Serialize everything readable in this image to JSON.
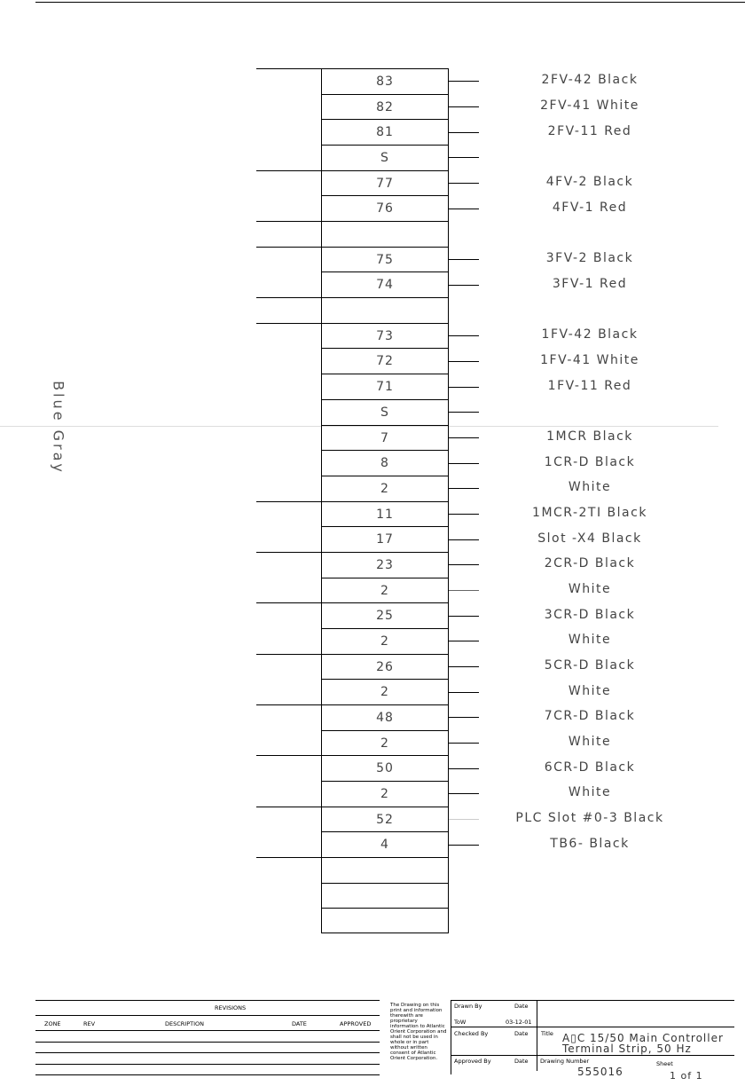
{
  "side_label": "Blue Gray",
  "terminals": [
    {
      "number": "83",
      "wire": "2FV-42 Black"
    },
    {
      "number": "82",
      "wire": "2FV-41 White"
    },
    {
      "number": "81",
      "wire": "2FV-11 Red"
    },
    {
      "number": "S",
      "wire": ""
    },
    {
      "number": "77",
      "wire": "4FV-2 Black"
    },
    {
      "number": "76",
      "wire": "4FV-1 Red"
    },
    {
      "number": "",
      "wire": ""
    },
    {
      "number": "75",
      "wire": "3FV-2 Black"
    },
    {
      "number": "74",
      "wire": "3FV-1 Red"
    },
    {
      "number": "",
      "wire": ""
    },
    {
      "number": "73",
      "wire": "1FV-42 Black"
    },
    {
      "number": "72",
      "wire": "1FV-41 White"
    },
    {
      "number": "71",
      "wire": "1FV-11 Red"
    },
    {
      "number": "S",
      "wire": ""
    },
    {
      "number": "7",
      "wire": "1MCR Black"
    },
    {
      "number": "8",
      "wire": "1CR-D Black"
    },
    {
      "number": "2",
      "wire": "White"
    },
    {
      "number": "11",
      "wire": "1MCR-2TI Black"
    },
    {
      "number": "17",
      "wire": "Slot   -X4 Black"
    },
    {
      "number": "23",
      "wire": "2CR-D Black"
    },
    {
      "number": "2",
      "wire": "White"
    },
    {
      "number": "25",
      "wire": "3CR-D Black"
    },
    {
      "number": "2",
      "wire": "White"
    },
    {
      "number": "26",
      "wire": "5CR-D Black"
    },
    {
      "number": "2",
      "wire": "White"
    },
    {
      "number": "48",
      "wire": "7CR-D Black"
    },
    {
      "number": "2",
      "wire": "White"
    },
    {
      "number": "50",
      "wire": "6CR-D Black"
    },
    {
      "number": "2",
      "wire": "White"
    },
    {
      "number": "52",
      "wire": "PLC Slot #0-3 Black"
    },
    {
      "number": "4",
      "wire": "TB6- Black"
    },
    {
      "number": "",
      "wire": ""
    },
    {
      "number": "",
      "wire": ""
    },
    {
      "number": "",
      "wire": ""
    }
  ],
  "revisions": {
    "title": "REVISIONS",
    "columns": [
      "ZONE",
      "REV",
      "DESCRIPTION",
      "DATE",
      "APPROVED"
    ]
  },
  "title_block": {
    "notice": "The Drawing on this print and information therewith are proprietary information to Atlantic Orient Corporation and shall not be used in whole or in part without written consent of Atlantic Orient Corporation.",
    "drawn_by_label": "Drawn By",
    "drawn_by": "ToW",
    "date_label": "Date",
    "drawn_date": "03-12-01",
    "checked_by_label": "Checked By",
    "approved_by_label": "Approved By",
    "title_label": "Title",
    "title_line1": "A▯C 15/50 Main Controller",
    "title_line2": "Terminal Strip, 50 Hz",
    "drawing_number_label": "Drawing Number",
    "drawing_number": "555016",
    "sheet_label": "Sheet",
    "sheet": "1 of 1"
  }
}
